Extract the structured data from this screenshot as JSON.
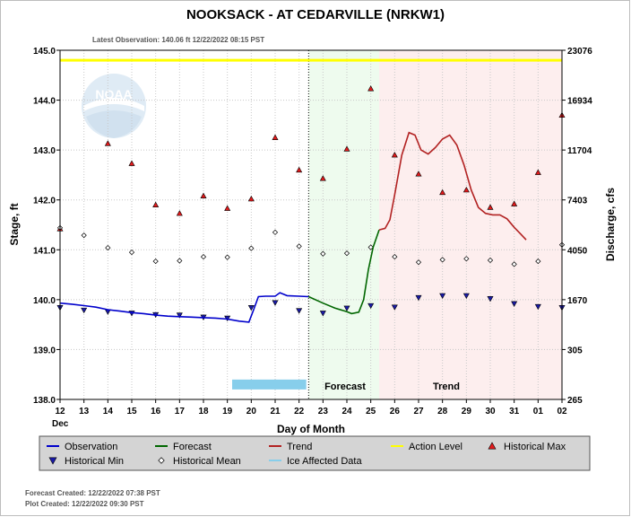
{
  "chart_data": {
    "type": "line",
    "title": "NOOKSACK - AT CEDARVILLE  (NRKW1)",
    "subtitle": "Latest Observation: 140.06 ft 12/22/2022 08:15 PST",
    "xlabel": "Day of Month",
    "ylabel": "Stage, ft",
    "y2label": "Discharge, cfs",
    "month_label": "Dec",
    "x_tick_labels": [
      "12",
      "13",
      "14",
      "15",
      "16",
      "17",
      "18",
      "19",
      "20",
      "21",
      "22",
      "23",
      "24",
      "25",
      "26",
      "27",
      "28",
      "29",
      "30",
      "31",
      "01",
      "02"
    ],
    "x_range_days": [
      12,
      33
    ],
    "ylim": [
      138.0,
      145.0
    ],
    "y_ticks": [
      "138.0",
      "139.0",
      "140.0",
      "141.0",
      "142.0",
      "143.0",
      "144.0",
      "145.0"
    ],
    "y2_ticks": [
      "265",
      "305",
      "1670",
      "4050",
      "7403",
      "11704",
      "16934",
      "23076"
    ],
    "grid": true,
    "action_level": 144.8,
    "region_labels": {
      "forecast": "Forecast",
      "trend": "Trend"
    },
    "forecast_start_day": 22.4,
    "trend_start_day": 25.35,
    "ice_affected": {
      "start_day": 19.2,
      "end_day": 22.3,
      "stage": 138.3
    },
    "colors": {
      "observation": "#0000cc",
      "forecast": "#006600",
      "trend": "#b22222",
      "action_level": "#ffff00",
      "historical_max": "#e31a1c",
      "ice": "#87ceeb",
      "forecast_bg": "#eefbee",
      "trend_bg": "#fdeeee"
    },
    "observation": [
      [
        12.0,
        139.93
      ],
      [
        12.5,
        139.91
      ],
      [
        13.0,
        139.88
      ],
      [
        13.5,
        139.85
      ],
      [
        14.0,
        139.8
      ],
      [
        14.5,
        139.77
      ],
      [
        15.0,
        139.74
      ],
      [
        15.5,
        139.72
      ],
      [
        16.0,
        139.69
      ],
      [
        16.5,
        139.67
      ],
      [
        17.0,
        139.66
      ],
      [
        17.5,
        139.65
      ],
      [
        18.0,
        139.64
      ],
      [
        18.5,
        139.63
      ],
      [
        19.0,
        139.61
      ],
      [
        19.5,
        139.57
      ],
      [
        19.9,
        139.55
      ],
      [
        20.1,
        139.8
      ],
      [
        20.3,
        140.06
      ],
      [
        20.6,
        140.07
      ],
      [
        21.0,
        140.07
      ],
      [
        21.2,
        140.14
      ],
      [
        21.5,
        140.08
      ],
      [
        22.0,
        140.07
      ],
      [
        22.4,
        140.06
      ]
    ],
    "forecast": [
      [
        22.4,
        140.06
      ],
      [
        23.0,
        139.93
      ],
      [
        23.5,
        139.83
      ],
      [
        24.0,
        139.76
      ],
      [
        24.2,
        139.72
      ],
      [
        24.5,
        139.75
      ],
      [
        24.7,
        140.0
      ],
      [
        24.9,
        140.6
      ],
      [
        25.1,
        141.05
      ],
      [
        25.35,
        141.4
      ]
    ],
    "trend": [
      [
        25.35,
        141.4
      ],
      [
        25.6,
        141.43
      ],
      [
        25.8,
        141.6
      ],
      [
        26.0,
        142.1
      ],
      [
        26.3,
        142.9
      ],
      [
        26.6,
        143.35
      ],
      [
        26.85,
        143.3
      ],
      [
        27.1,
        143.0
      ],
      [
        27.4,
        142.92
      ],
      [
        27.7,
        143.05
      ],
      [
        28.0,
        143.22
      ],
      [
        28.3,
        143.3
      ],
      [
        28.6,
        143.1
      ],
      [
        28.9,
        142.7
      ],
      [
        29.2,
        142.2
      ],
      [
        29.5,
        141.85
      ],
      [
        29.8,
        141.73
      ],
      [
        30.1,
        141.7
      ],
      [
        30.4,
        141.7
      ],
      [
        30.7,
        141.62
      ],
      [
        31.0,
        141.45
      ],
      [
        31.3,
        141.3
      ],
      [
        31.5,
        141.2
      ]
    ],
    "historical_max": [
      [
        12,
        141.42
      ],
      [
        14,
        143.13
      ],
      [
        15,
        142.73
      ],
      [
        16,
        141.9
      ],
      [
        17,
        141.73
      ],
      [
        18,
        142.08
      ],
      [
        19,
        141.83
      ],
      [
        20,
        142.02
      ],
      [
        21,
        143.25
      ],
      [
        22,
        142.6
      ],
      [
        23,
        142.43
      ],
      [
        24,
        143.02
      ],
      [
        25,
        144.23
      ],
      [
        26,
        142.9
      ],
      [
        27,
        142.52
      ],
      [
        28,
        142.15
      ],
      [
        29,
        142.2
      ],
      [
        30,
        141.85
      ],
      [
        31,
        141.92
      ],
      [
        32,
        142.55
      ],
      [
        33,
        143.7
      ]
    ],
    "historical_min": [
      [
        12,
        139.84
      ],
      [
        13,
        139.79
      ],
      [
        14,
        139.76
      ],
      [
        15,
        139.73
      ],
      [
        16,
        139.7
      ],
      [
        17,
        139.69
      ],
      [
        18,
        139.65
      ],
      [
        19,
        139.63
      ],
      [
        20,
        139.84
      ],
      [
        21,
        139.94
      ],
      [
        22,
        139.78
      ],
      [
        23,
        139.73
      ],
      [
        24,
        139.83
      ],
      [
        25,
        139.88
      ],
      [
        26,
        139.85
      ],
      [
        27,
        140.04
      ],
      [
        28,
        140.08
      ],
      [
        29,
        140.08
      ],
      [
        30,
        140.02
      ],
      [
        31,
        139.92
      ],
      [
        32,
        139.86
      ],
      [
        33,
        139.84
      ]
    ],
    "historical_mean": [
      [
        12,
        141.44
      ],
      [
        13,
        141.29
      ],
      [
        14,
        141.04
      ],
      [
        15,
        140.95
      ],
      [
        16,
        140.77
      ],
      [
        17,
        140.78
      ],
      [
        18,
        140.86
      ],
      [
        19,
        140.85
      ],
      [
        20,
        141.03
      ],
      [
        21,
        141.35
      ],
      [
        22,
        141.07
      ],
      [
        23,
        140.92
      ],
      [
        24,
        140.93
      ],
      [
        25,
        141.05
      ],
      [
        26,
        140.86
      ],
      [
        27,
        140.75
      ],
      [
        28,
        140.8
      ],
      [
        29,
        140.82
      ],
      [
        30,
        140.79
      ],
      [
        31,
        140.71
      ],
      [
        32,
        140.77
      ],
      [
        33,
        141.1
      ]
    ],
    "legend": [
      {
        "key": "observation",
        "label": "Observation",
        "marker": "line"
      },
      {
        "key": "forecast",
        "label": "Forecast",
        "marker": "line"
      },
      {
        "key": "trend",
        "label": "Trend",
        "marker": "line"
      },
      {
        "key": "action_level",
        "label": "Action Level",
        "marker": "line"
      },
      {
        "key": "historical_max",
        "label": "Historical Max",
        "marker": "tri-up"
      },
      {
        "key": "historical_min",
        "label": "Historical Min",
        "marker": "tri-down"
      },
      {
        "key": "historical_mean",
        "label": "Historical Mean",
        "marker": "diamond"
      },
      {
        "key": "ice_affected",
        "label": "Ice Affected Data",
        "marker": "line"
      }
    ],
    "footer": [
      "Forecast Created: 12/22/2022 07:38 PST",
      "Plot Created: 12/22/2022 09:30 PST"
    ],
    "logo_text": "NOAA"
  }
}
